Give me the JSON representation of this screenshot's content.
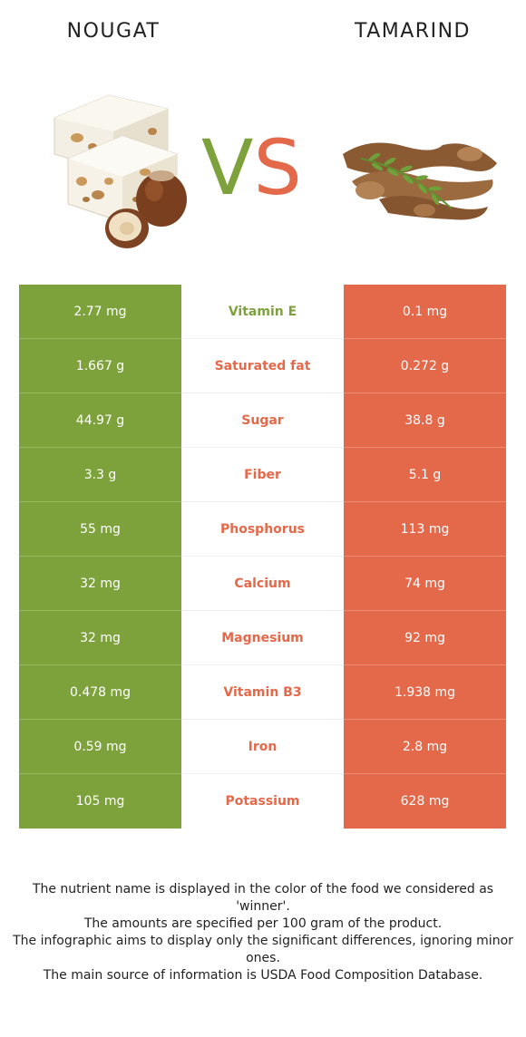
{
  "header": {
    "left_food": "NOUGAT",
    "right_food": "TAMARIND",
    "vs_v": "V",
    "vs_s": "S"
  },
  "colors": {
    "left_food": "#7ea23b",
    "right_food": "#e4694b"
  },
  "rows": [
    {
      "nutrient": "Vitamin E",
      "left": "2.77 mg",
      "right": "0.1 mg",
      "winner": "left"
    },
    {
      "nutrient": "Saturated fat",
      "left": "1.667 g",
      "right": "0.272 g",
      "winner": "right"
    },
    {
      "nutrient": "Sugar",
      "left": "44.97 g",
      "right": "38.8 g",
      "winner": "right"
    },
    {
      "nutrient": "Fiber",
      "left": "3.3 g",
      "right": "5.1 g",
      "winner": "right"
    },
    {
      "nutrient": "Phosphorus",
      "left": "55 mg",
      "right": "113 mg",
      "winner": "right"
    },
    {
      "nutrient": "Calcium",
      "left": "32 mg",
      "right": "74 mg",
      "winner": "right"
    },
    {
      "nutrient": "Magnesium",
      "left": "32 mg",
      "right": "92 mg",
      "winner": "right"
    },
    {
      "nutrient": "Vitamin B3",
      "left": "0.478 mg",
      "right": "1.938 mg",
      "winner": "right"
    },
    {
      "nutrient": "Iron",
      "left": "0.59 mg",
      "right": "2.8 mg",
      "winner": "right"
    },
    {
      "nutrient": "Potassium",
      "left": "105 mg",
      "right": "628 mg",
      "winner": "right"
    }
  ],
  "footnotes": [
    "The nutrient name is displayed in the color of the food we considered as 'winner'.",
    "The amounts are specified per 100 gram of the product.",
    "The infographic aims to display only the significant differences, ignoring minor ones.",
    "The main source of information is USDA Food Composition Database."
  ]
}
